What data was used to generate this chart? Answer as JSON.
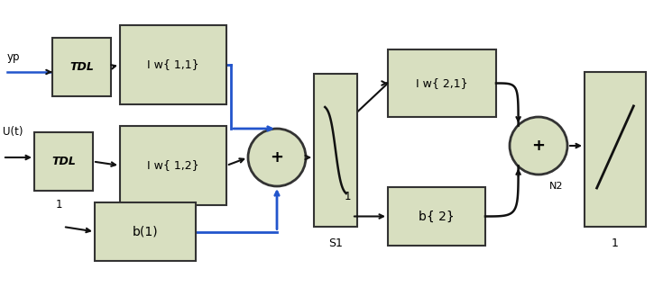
{
  "bg_color": "#ffffff",
  "box_fill": "#d8dfc0",
  "box_edge": "#333333",
  "circle_fill": "#d8dfc0",
  "arrow_color": "#111111",
  "blue_line_color": "#2255cc",
  "box_texts": {
    "TDL1": "TDL",
    "TDL2": "TDL",
    "IW11": "I w{ 1,1}",
    "IW12": "I w{ 1,2}",
    "IW21": "I w{ 2,1}",
    "b1": "b(1)",
    "b2": "b{ 2}"
  },
  "labels": {
    "yp": "yp",
    "Ut": "U(t)",
    "one_b1": "1",
    "one_b2": "1",
    "S1": "S1",
    "N2": "N2",
    "out_label": "1"
  }
}
